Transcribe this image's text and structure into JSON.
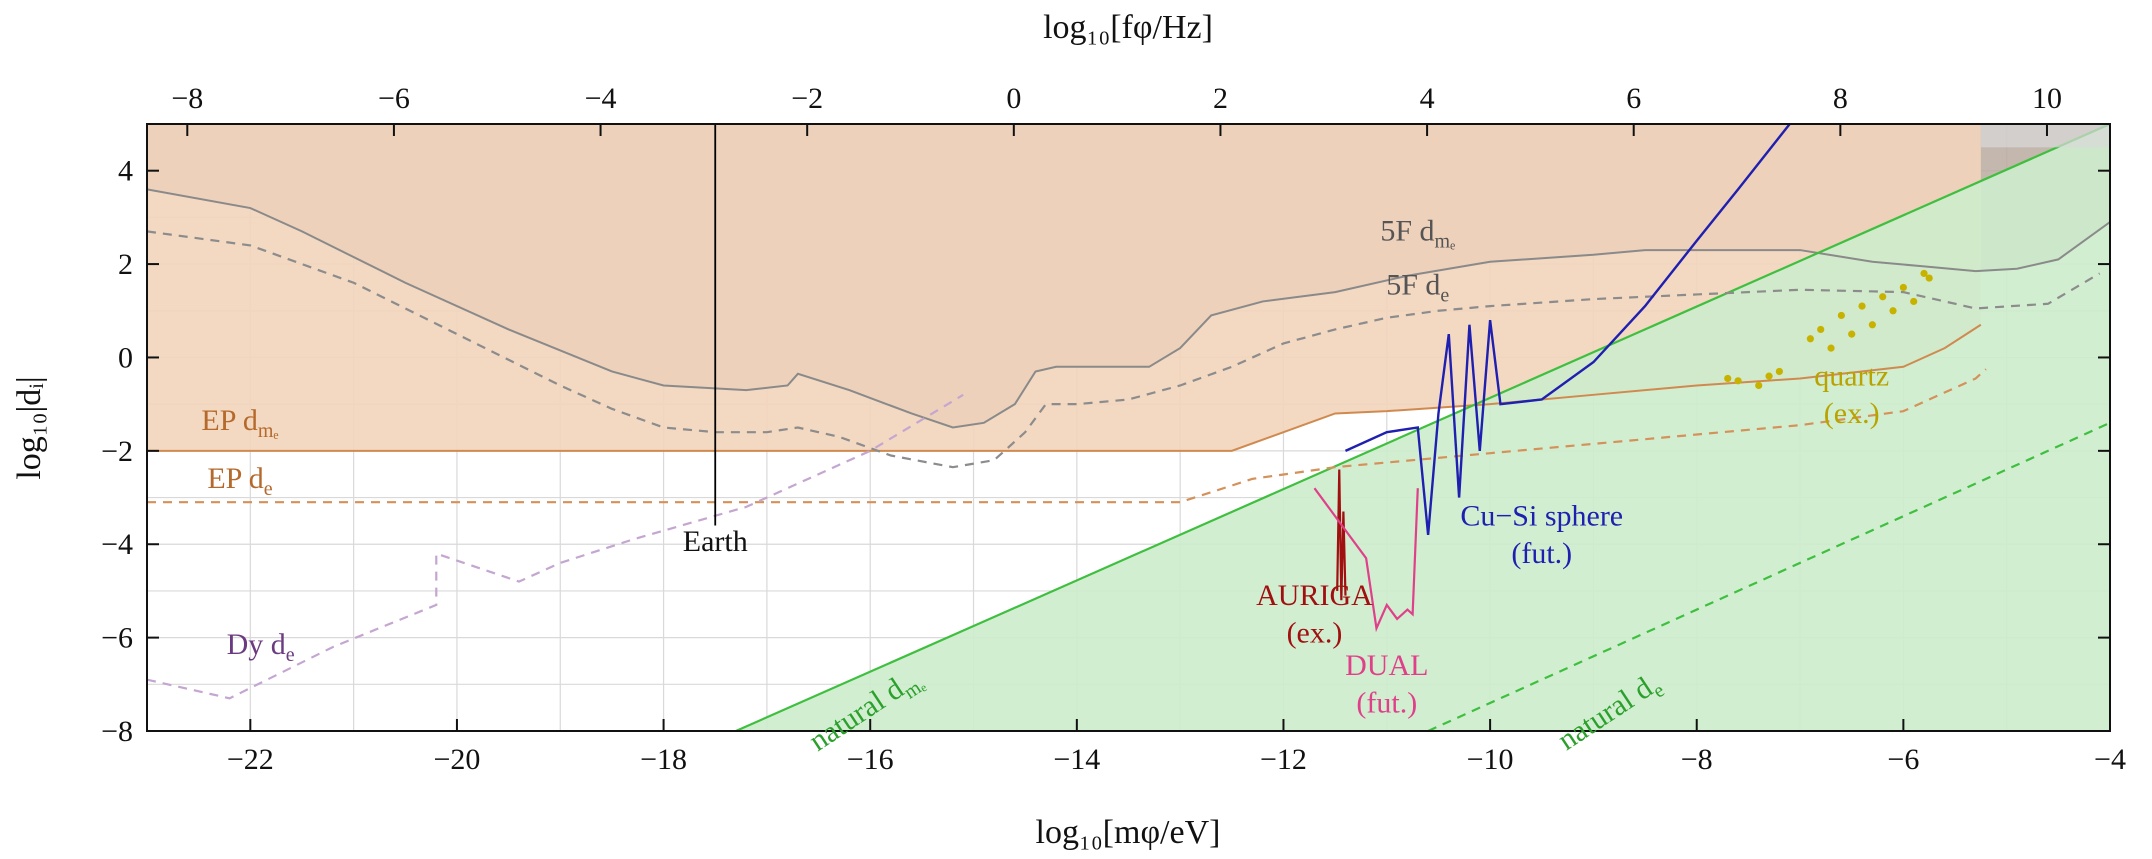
{
  "chart_data": {
    "type": "line",
    "xlabel": "log₁₀[mφ/eV]",
    "ylabel": "log₁₀|dᵢ|",
    "top_xlabel": "log₁₀[fφ/Hz]",
    "xlim": [
      -23,
      -4
    ],
    "ylim": [
      -8,
      5
    ],
    "top_xlim": [
      -8.39,
      10.61
    ],
    "grid": true,
    "x_ticks": [
      "−22",
      "−20",
      "−18",
      "−16",
      "−14",
      "−12",
      "−10",
      "−8",
      "−6",
      "−4"
    ],
    "x_tick_values": [
      -22,
      -20,
      -18,
      -16,
      -14,
      -12,
      -10,
      -8,
      -6,
      -4
    ],
    "top_ticks": [
      "−8",
      "−6",
      "−4",
      "−2",
      "0",
      "2",
      "4",
      "6",
      "8",
      "10"
    ],
    "top_tick_values": [
      -8,
      -6,
      -4,
      -2,
      0,
      2,
      4,
      6,
      8,
      10
    ],
    "y_ticks": [
      "−8",
      "−6",
      "−4",
      "−2",
      "0",
      "2",
      "4"
    ],
    "y_tick_values": [
      -8,
      -6,
      -4,
      -2,
      0,
      2,
      4
    ],
    "regions": [
      {
        "name": "5F dme",
        "color": "#b9aaa0",
        "points": [
          [
            -23,
            3.6
          ],
          [
            -22,
            3.2
          ],
          [
            -21.5,
            2.7
          ],
          [
            -20.5,
            1.6
          ],
          [
            -19.5,
            0.6
          ],
          [
            -18.5,
            -0.3
          ],
          [
            -18,
            -0.6
          ],
          [
            -17.2,
            -0.7
          ],
          [
            -16.8,
            -0.6
          ],
          [
            -16.7,
            -0.35
          ],
          [
            -16.2,
            -0.7
          ],
          [
            -15.6,
            -1.2
          ],
          [
            -15.2,
            -1.5
          ],
          [
            -14.9,
            -1.4
          ],
          [
            -14.6,
            -1
          ],
          [
            -14.4,
            -0.3
          ],
          [
            -14.2,
            -0.2
          ],
          [
            -13.8,
            -0.2
          ],
          [
            -13.3,
            -0.2
          ],
          [
            -13,
            0.2
          ],
          [
            -12.7,
            0.9
          ],
          [
            -12.2,
            1.2
          ],
          [
            -11.5,
            1.4
          ],
          [
            -10.8,
            1.75
          ],
          [
            -10,
            2.05
          ],
          [
            -9,
            2.2
          ],
          [
            -8.5,
            2.3
          ],
          [
            -7,
            2.3
          ],
          [
            -6.3,
            2.05
          ],
          [
            -5.8,
            1.95
          ],
          [
            -5.3,
            1.85
          ],
          [
            -4.9,
            1.9
          ],
          [
            -4.5,
            2.1
          ],
          [
            -4,
            2.9
          ]
        ]
      },
      {
        "name": "EP dme",
        "color": "#f2d4bb",
        "points": [
          [
            -23,
            -2
          ],
          [
            -12.5,
            -2
          ],
          [
            -12,
            -1.6
          ],
          [
            -11.5,
            -1.2
          ],
          [
            -11,
            -1.15
          ],
          [
            -10,
            -1.0
          ],
          [
            -9,
            -0.8
          ],
          [
            -8,
            -0.6
          ],
          [
            -7,
            -0.45
          ],
          [
            -6,
            -0.2
          ],
          [
            -5.6,
            0.2
          ],
          [
            -5.25,
            0.7
          ]
        ]
      },
      {
        "name": "natural dme",
        "color": "#cdeccc",
        "points": [
          [
            -17.3,
            -8
          ],
          [
            -4,
            5
          ]
        ]
      }
    ],
    "series": [
      {
        "name": "5F de",
        "color": "#8c8c8c",
        "style": "dashed",
        "x": [
          -23,
          -22,
          -21,
          -20,
          -19,
          -18.5,
          -18,
          -17.5,
          -17,
          -16.7,
          -16.3,
          -15.8,
          -15.2,
          -14.8,
          -14.5,
          -14.3,
          -14,
          -13.5,
          -13,
          -12.5,
          -12,
          -11.5,
          -11,
          -10.5,
          -10,
          -9,
          -8,
          -7,
          -6,
          -5.3,
          -4.6,
          -4.1
        ],
        "y": [
          2.7,
          2.4,
          1.6,
          0.5,
          -0.6,
          -1.1,
          -1.5,
          -1.6,
          -1.6,
          -1.5,
          -1.7,
          -2.1,
          -2.35,
          -2.2,
          -1.6,
          -1.0,
          -1.0,
          -0.9,
          -0.6,
          -0.2,
          0.3,
          0.6,
          0.85,
          1.0,
          1.1,
          1.25,
          1.35,
          1.45,
          1.4,
          1.05,
          1.15,
          1.8
        ]
      },
      {
        "name": "EP de",
        "color": "#d5915a",
        "style": "dashed",
        "x": [
          -23,
          -13,
          -12.3,
          -11.5,
          -11,
          -10,
          -9,
          -8,
          -7,
          -6,
          -5.3,
          -5.2
        ],
        "y": [
          -3.1,
          -3.1,
          -2.6,
          -2.35,
          -2.25,
          -2.05,
          -1.85,
          -1.65,
          -1.45,
          -1.15,
          -0.45,
          -0.25
        ]
      },
      {
        "name": "Dy de",
        "color": "#c4a6d0",
        "style": "dashed",
        "x": [
          -23,
          -22.2,
          -21.2,
          -20.2,
          -20.2,
          -19.4,
          -19.0,
          -18.3,
          -17.2,
          -16.0,
          -15.1
        ],
        "y": [
          -6.9,
          -7.3,
          -6.2,
          -5.3,
          -4.2,
          -4.8,
          -4.4,
          -3.9,
          -3.2,
          -2.0,
          -0.8
        ]
      },
      {
        "name": "natural de",
        "color": "#3fbf3f",
        "style": "dashed",
        "x": [
          -10.6,
          -4
        ],
        "y": [
          -8,
          -1.4
        ]
      },
      {
        "name": "Cu-Si sphere (fut.)",
        "color": "#1f1fb0",
        "style": "solid",
        "x": [
          -11.4,
          -11,
          -10.7,
          -10.6,
          -10.5,
          -10.4,
          -10.3,
          -10.2,
          -10.1,
          -10.0,
          -9.9,
          -9.5,
          -9.0,
          -8.5,
          -8.0,
          -7.6,
          -7.1
        ],
        "y": [
          -2.0,
          -1.6,
          -1.5,
          -3.8,
          -1.2,
          0.5,
          -3.0,
          0.7,
          -2.0,
          0.8,
          -1.0,
          -0.9,
          -0.1,
          1.1,
          2.5,
          3.6,
          5.0
        ]
      },
      {
        "name": "AURIGA (ex.)",
        "color": "#a01010",
        "style": "solid",
        "x": [
          -11.48,
          -11.46,
          -11.44,
          -11.42,
          -11.4
        ],
        "y": [
          -5.0,
          -2.4,
          -5.2,
          -3.3,
          -5.1
        ]
      },
      {
        "name": "DUAL (fut.)",
        "color": "#e0408a",
        "style": "solid",
        "x": [
          -11.7,
          -11.4,
          -11.2,
          -11.1,
          -11.0,
          -10.9,
          -10.8,
          -10.75,
          -10.7
        ],
        "y": [
          -2.8,
          -3.7,
          -4.3,
          -5.8,
          -5.3,
          -5.6,
          -5.4,
          -5.5,
          -2.8
        ]
      },
      {
        "name": "quartz (ex.)",
        "color": "#c8b200",
        "style": "points",
        "x": [
          -7.7,
          -7.6,
          -7.4,
          -7.3,
          -7.2,
          -6.9,
          -6.8,
          -6.7,
          -6.6,
          -6.5,
          -6.4,
          -6.3,
          -6.2,
          -6.1,
          -6.0,
          -5.9,
          -5.8,
          -5.75
        ],
        "y": [
          -0.45,
          -0.5,
          -0.6,
          -0.4,
          -0.3,
          0.4,
          0.6,
          0.2,
          0.9,
          0.5,
          1.1,
          0.7,
          1.3,
          1.0,
          1.5,
          1.2,
          1.8,
          1.7
        ]
      },
      {
        "name": "Earth",
        "color": "#000000",
        "style": "solid",
        "x": [
          -17.5,
          -17.5
        ],
        "y": [
          -3.6,
          5
        ]
      }
    ],
    "annotations": [
      {
        "text": "5F d",
        "sub": "mₑ",
        "x": -10.7,
        "y": 2.5,
        "color": "#555555"
      },
      {
        "text": "5F d",
        "sub": "e",
        "x": -10.7,
        "y": 1.35,
        "color": "#555555"
      },
      {
        "text": "EP d",
        "sub": "mₑ",
        "x": -22.1,
        "y": -1.55,
        "color": "#b56a2c"
      },
      {
        "text": "EP d",
        "sub": "e",
        "x": -22.1,
        "y": -2.8,
        "color": "#b56a2c"
      },
      {
        "text": "Earth",
        "x": -17.5,
        "y": -4.15,
        "color": "#111111"
      },
      {
        "text": "Dy d",
        "sub": "e",
        "x": -21.9,
        "y": -6.35,
        "color": "#6b3a80"
      },
      {
        "text": "AURIGA",
        "x": -11.7,
        "y": -5.3,
        "color": "#a01010"
      },
      {
        "text": "(ex.)",
        "x": -11.7,
        "y": -6.1,
        "color": "#a01010"
      },
      {
        "text": "DUAL",
        "x": -11.0,
        "y": -6.8,
        "color": "#e0408a"
      },
      {
        "text": "(fut.)",
        "x": -11.0,
        "y": -7.6,
        "color": "#e0408a"
      },
      {
        "text": "Cu−Si sphere",
        "x": -9.5,
        "y": -3.6,
        "color": "#1f1fb0"
      },
      {
        "text": "(fut.)",
        "x": -9.5,
        "y": -4.4,
        "color": "#1f1fb0"
      },
      {
        "text": "quartz",
        "x": -6.5,
        "y": -0.6,
        "color": "#b8a300"
      },
      {
        "text": "(ex.)",
        "x": -6.5,
        "y": -1.4,
        "color": "#b8a300"
      },
      {
        "text": "natural d",
        "sub": "mₑ",
        "x": -16.0,
        "y": -7.7,
        "color": "#2ca02c",
        "rotate": true
      },
      {
        "text": "natural d",
        "sub": "e",
        "x": -8.8,
        "y": -7.75,
        "color": "#2ca02c",
        "rotate": true
      }
    ]
  }
}
